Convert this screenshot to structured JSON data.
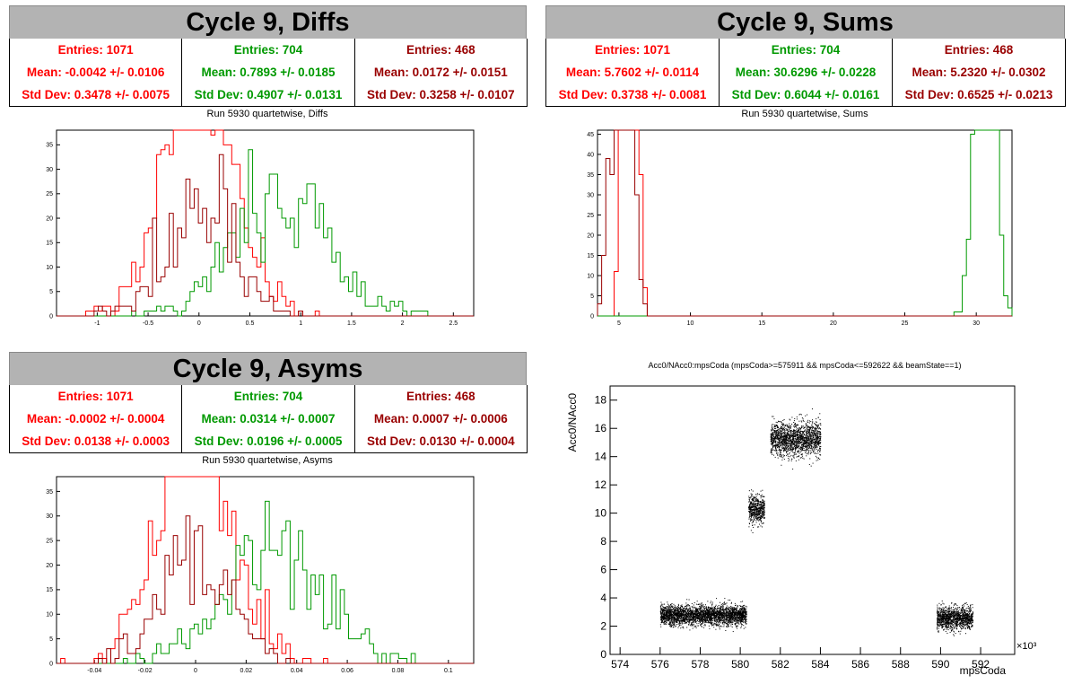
{
  "panels": {
    "diffs": {
      "title": "Cycle 9, Diffs",
      "subtitle": "Run 5930 quartetwise, Diffs",
      "stats": [
        {
          "entries": "Entries: 1071",
          "mean": "Mean: -0.0042 +/- 0.0106",
          "std": "Std Dev: 0.3478 +/- 0.0075",
          "color": "#ff0000"
        },
        {
          "entries": "Entries: 704",
          "mean": "Mean: 0.7893 +/- 0.0185",
          "std": "Std Dev: 0.4907 +/- 0.0131",
          "color": "#009900"
        },
        {
          "entries": "Entries: 468",
          "mean": "Mean: 0.0172 +/- 0.0151",
          "std": "Std Dev: 0.3258 +/- 0.0107",
          "color": "#990000"
        }
      ]
    },
    "sums": {
      "title": "Cycle 9, Sums",
      "subtitle": "Run 5930 quartetwise, Sums",
      "stats": [
        {
          "entries": "Entries: 1071",
          "mean": "Mean: 5.7602 +/- 0.0114",
          "std": "Std Dev: 0.3738 +/- 0.0081",
          "color": "#ff0000"
        },
        {
          "entries": "Entries: 704",
          "mean": "Mean: 30.6296 +/- 0.0228",
          "std": "Std Dev: 0.6044 +/- 0.0161",
          "color": "#009900"
        },
        {
          "entries": "Entries: 468",
          "mean": "Mean: 5.2320 +/- 0.0302",
          "std": "Std Dev: 0.6525 +/- 0.0213",
          "color": "#990000"
        }
      ]
    },
    "asyms": {
      "title": "Cycle 9, Asyms",
      "subtitle": "Run 5930 quartetwise, Asyms",
      "stats": [
        {
          "entries": "Entries: 1071",
          "mean": "Mean: -0.0002 +/- 0.0004",
          "std": "Std Dev: 0.0138 +/- 0.0003",
          "color": "#ff0000"
        },
        {
          "entries": "Entries: 704",
          "mean": "Mean: 0.0314 +/- 0.0007",
          "std": "Std Dev: 0.0196 +/- 0.0005",
          "color": "#009900"
        },
        {
          "entries": "Entries: 468",
          "mean": "Mean: 0.0007 +/- 0.0006",
          "std": "Std Dev: 0.0130 +/- 0.0004",
          "color": "#990000"
        }
      ]
    },
    "scatter": {
      "title": "Acc0/NAcc0:mpsCoda (mpsCoda>=575911 && mpsCoda<=592622 && beamState==1)"
    }
  },
  "chart_data": [
    {
      "type": "histogram",
      "panel": "diffs",
      "xlim": [
        -1.4,
        2.7
      ],
      "ylim": [
        0,
        38
      ],
      "xticks": [
        -1,
        -0.5,
        0,
        0.5,
        1,
        1.5,
        2,
        2.5
      ],
      "yticks": [
        0,
        5,
        10,
        15,
        20,
        25,
        30,
        35
      ],
      "series": [
        {
          "color": "#ff0000",
          "entries": 1071,
          "mean": -0.0042,
          "std": 0.3478
        },
        {
          "color": "#009900",
          "entries": 704,
          "mean": 0.7893,
          "std": 0.4907
        },
        {
          "color": "#990000",
          "entries": 468,
          "mean": 0.0172,
          "std": 0.3258
        }
      ]
    },
    {
      "type": "histogram",
      "panel": "sums",
      "xlim": [
        3.5,
        32.5
      ],
      "ylim": [
        0,
        46
      ],
      "xticks": [
        5,
        10,
        15,
        20,
        25,
        30
      ],
      "yticks": [
        0,
        5,
        10,
        15,
        20,
        25,
        30,
        35,
        40,
        45
      ],
      "series": [
        {
          "color": "#ff0000",
          "entries": 1071,
          "mean": 5.7602,
          "std": 0.3738
        },
        {
          "color": "#009900",
          "entries": 704,
          "mean": 30.6296,
          "std": 0.6044
        },
        {
          "color": "#990000",
          "entries": 468,
          "mean": 5.232,
          "std": 0.6525
        }
      ]
    },
    {
      "type": "histogram",
      "panel": "asyms",
      "xlim": [
        -0.055,
        0.11
      ],
      "ylim": [
        0,
        38
      ],
      "xticks": [
        -0.04,
        -0.02,
        0,
        0.02,
        0.04,
        0.06,
        0.08,
        0.1
      ],
      "yticks": [
        0,
        5,
        10,
        15,
        20,
        25,
        30,
        35
      ],
      "series": [
        {
          "color": "#ff0000",
          "entries": 1071,
          "mean": -0.0002,
          "std": 0.0138
        },
        {
          "color": "#009900",
          "entries": 704,
          "mean": 0.0314,
          "std": 0.0196
        },
        {
          "color": "#990000",
          "entries": 468,
          "mean": 0.0007,
          "std": 0.013
        }
      ]
    },
    {
      "type": "scatter",
      "panel": "scatter",
      "xlabel": "mpsCoda",
      "ylabel": "Acc0/NAcc0",
      "x_multiplier": "×10³",
      "xlim": [
        573.5,
        593.7
      ],
      "ylim": [
        0,
        19
      ],
      "xticks": [
        574,
        576,
        578,
        580,
        582,
        584,
        586,
        588,
        590,
        592
      ],
      "yticks": [
        0,
        2,
        4,
        6,
        8,
        10,
        12,
        14,
        16,
        18
      ],
      "clusters": [
        {
          "x": [
            576,
            580.3
          ],
          "y_center": 2.8,
          "y_spread": 0.35
        },
        {
          "x": [
            580.4,
            581.2
          ],
          "y_center": 10.3,
          "y_spread": 0.5
        },
        {
          "x": [
            581.5,
            584
          ],
          "y_center": 15.3,
          "y_spread": 0.6
        },
        {
          "x": [
            589.8,
            591.6
          ],
          "y_center": 2.6,
          "y_spread": 0.4
        }
      ],
      "color": "#000000"
    }
  ]
}
